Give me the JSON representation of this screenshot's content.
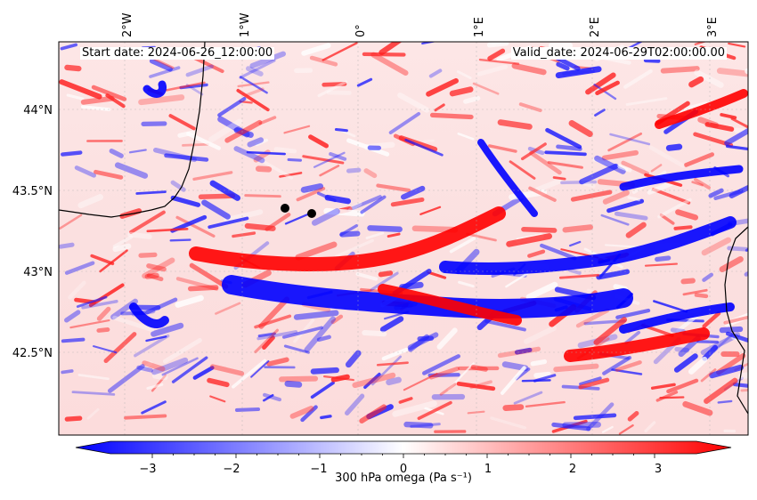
{
  "map": {
    "annotations": {
      "start_date": "Start date: 2024-06-26_12:00:00",
      "valid_date": "Valid_date: 2024-06-29T02:00:00.00"
    },
    "longitude_labels": [
      "2°W",
      "1°W",
      "0°",
      "1°E",
      "2°E",
      "3°E"
    ],
    "latitude_labels": [
      "44°N",
      "43.5°N",
      "43°N",
      "42.5°N"
    ],
    "colorbar": {
      "label": "300 hPa omega (Pa s⁻¹)",
      "ticks": [
        "−3",
        "−2",
        "−1",
        "0",
        "1",
        "2",
        "3"
      ],
      "range": [
        -3.5,
        3.5
      ],
      "colormap": [
        "#0000ff",
        "#ffffff",
        "#ff0000"
      ]
    },
    "markers": [
      "#000000",
      "#000000"
    ]
  }
}
